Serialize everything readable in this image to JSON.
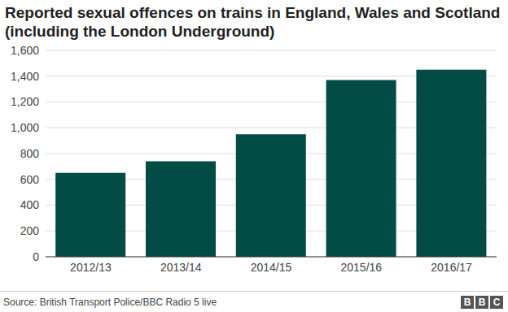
{
  "chart_data": {
    "type": "bar",
    "title": "Reported sexual offences on trains in England, Wales and Scotland (including the London Underground)",
    "source": "Source: British Transport Police/BBC Radio 5 live",
    "logo": "BBC",
    "categories": [
      "2012/13",
      "2013/14",
      "2014/15",
      "2015/16",
      "2016/17"
    ],
    "values": [
      650,
      740,
      950,
      1370,
      1450
    ],
    "color": "#034b45",
    "ylim": [
      0,
      1600
    ],
    "yticks": [
      0,
      200,
      400,
      600,
      800,
      {
        "value": 1000,
        "label": "1,000"
      },
      {
        "value": 1200,
        "label": "1,200"
      },
      {
        "value": 1400,
        "label": "1,400"
      },
      {
        "value": 1600,
        "label": "1,600"
      }
    ],
    "grid": true
  }
}
